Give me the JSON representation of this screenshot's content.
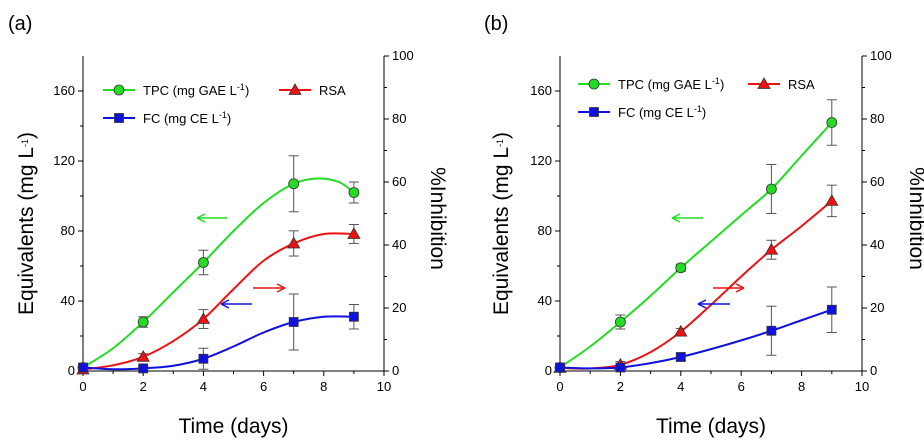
{
  "chart_data": [
    {
      "type": "line",
      "panel_label": "(a)",
      "xlabel": "Time (days)",
      "ylabel_main": "Equivalents (mg L",
      "ylabel_sup": "-1",
      "ylabel_close": ")",
      "y2label": "%Inhibition",
      "xlim": [
        0,
        10
      ],
      "ylim": [
        0,
        180
      ],
      "y2lim": [
        0,
        100
      ],
      "xticks": [
        "0",
        "2",
        "4",
        "6",
        "8",
        "10"
      ],
      "yticks": [
        "0",
        "40",
        "80",
        "120",
        "160"
      ],
      "y2ticks": [
        "0",
        "20",
        "40",
        "60",
        "80",
        "100"
      ],
      "legend_position": "top-left",
      "series": [
        {
          "name": "TPC (mg GAE  L",
          "name_sup": "-1",
          "name_close": ")",
          "axis": "left",
          "color": "#22dd22",
          "marker": "circle",
          "x": [
            0,
            2,
            4,
            7,
            9
          ],
          "y": [
            2,
            28,
            62,
            107,
            102
          ],
          "err": [
            2,
            3,
            7,
            16,
            6
          ],
          "curve": [
            [
              0,
              2
            ],
            [
              1,
              13
            ],
            [
              2,
              28
            ],
            [
              3,
              45
            ],
            [
              4,
              62
            ],
            [
              5,
              80
            ],
            [
              6,
              96
            ],
            [
              7,
              107
            ],
            [
              7.8,
              110
            ],
            [
              8.5,
              108
            ],
            [
              9,
              102
            ]
          ]
        },
        {
          "name": "RSA",
          "axis": "right",
          "color": "#ee1111",
          "marker": "triangle",
          "x": [
            0,
            2,
            4,
            7,
            9
          ],
          "y": [
            0.5,
            4.5,
            16.5,
            40.5,
            43.5
          ],
          "err": [
            0.5,
            1,
            3,
            4,
            3
          ],
          "curve": [
            [
              0,
              0.5
            ],
            [
              1,
              1.8
            ],
            [
              2,
              4.5
            ],
            [
              3,
              9.5
            ],
            [
              4,
              16.5
            ],
            [
              5,
              26
            ],
            [
              6,
              35
            ],
            [
              7,
              40.5
            ],
            [
              8,
              43.5
            ],
            [
              9,
              43.5
            ]
          ]
        },
        {
          "name": "FC (mg CE  L",
          "name_sup": "-1",
          "name_close": ")",
          "axis": "left",
          "color": "#1111dd",
          "marker": "square",
          "x": [
            0,
            2,
            4,
            7,
            9
          ],
          "y": [
            2,
            1.5,
            7,
            28,
            31
          ],
          "err": [
            1,
            1,
            6,
            16,
            7
          ],
          "curve": [
            [
              0,
              2
            ],
            [
              1,
              1
            ],
            [
              2,
              1.5
            ],
            [
              3,
              3
            ],
            [
              4,
              7
            ],
            [
              5,
              14
            ],
            [
              6,
              22
            ],
            [
              7,
              28
            ],
            [
              8,
              31
            ],
            [
              9,
              31
            ]
          ]
        }
      ]
    },
    {
      "type": "line",
      "panel_label": "(b)",
      "xlabel": "Time (days)",
      "ylabel_main": "Equivalents (mg L",
      "ylabel_sup": "-1",
      "ylabel_close": ")",
      "y2label": "%Inhibition",
      "xlim": [
        0,
        10
      ],
      "ylim": [
        0,
        180
      ],
      "y2lim": [
        0,
        100
      ],
      "xticks": [
        "0",
        "2",
        "4",
        "6",
        "8",
        "10"
      ],
      "yticks": [
        "0",
        "40",
        "80",
        "120",
        "160"
      ],
      "y2ticks": [
        "0",
        "20",
        "40",
        "60",
        "80",
        "100"
      ],
      "legend_position": "top-left",
      "series": [
        {
          "name": "TPC (mg GAE  L",
          "name_sup": "-1",
          "name_close": ")",
          "axis": "left",
          "color": "#22dd22",
          "marker": "circle",
          "x": [
            0,
            2,
            4,
            7,
            9
          ],
          "y": [
            2,
            28,
            59,
            104,
            142
          ],
          "err": [
            2,
            4,
            2,
            14,
            13
          ],
          "curve": [
            [
              0,
              2
            ],
            [
              1,
              14
            ],
            [
              2,
              28
            ],
            [
              3,
              43
            ],
            [
              4,
              59
            ],
            [
              5,
              74
            ],
            [
              6,
              89
            ],
            [
              7,
              104
            ],
            [
              8,
              123
            ],
            [
              9,
              142
            ]
          ]
        },
        {
          "name": "RSA",
          "axis": "right",
          "color": "#ee1111",
          "marker": "triangle",
          "x": [
            0,
            2,
            4,
            7,
            9
          ],
          "y": [
            1,
            2,
            12.5,
            38.5,
            54
          ],
          "err": [
            0.5,
            1,
            1,
            3,
            5
          ],
          "curve": [
            [
              0,
              1
            ],
            [
              1,
              0.8
            ],
            [
              2,
              2
            ],
            [
              3,
              6
            ],
            [
              4,
              12.5
            ],
            [
              5,
              21
            ],
            [
              6,
              30
            ],
            [
              7,
              38.5
            ],
            [
              8,
              46
            ],
            [
              9,
              54
            ]
          ]
        },
        {
          "name": "FC (mg CE  L",
          "name_sup": "-1",
          "name_close": ")",
          "axis": "left",
          "color": "#1111dd",
          "marker": "square",
          "x": [
            0,
            2,
            4,
            7,
            9
          ],
          "y": [
            2,
            2,
            8,
            23,
            35
          ],
          "err": [
            1,
            1,
            2,
            14,
            13
          ],
          "curve": [
            [
              0,
              2
            ],
            [
              1,
              1.5
            ],
            [
              2,
              2
            ],
            [
              3,
              4.5
            ],
            [
              4,
              8
            ],
            [
              5,
              12.5
            ],
            [
              6,
              17.5
            ],
            [
              7,
              23
            ],
            [
              8,
              29
            ],
            [
              9,
              35
            ]
          ]
        }
      ]
    }
  ]
}
